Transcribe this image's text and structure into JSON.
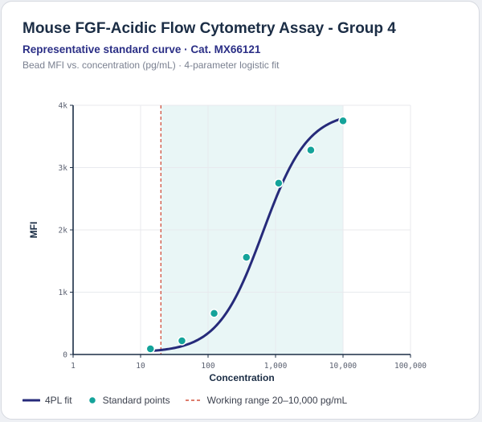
{
  "header": {
    "title": "Mouse FGF-Acidic Flow Cytometry Assay - Group 4",
    "subtitle": "Representative standard curve · Cat. MX66121",
    "caption": "Bead MFI vs. concentration (pg/mL) · 4-parameter logistic fit"
  },
  "legend": {
    "fit_label": "4PL fit",
    "points_label": "Standard points",
    "range_label": "Working range 20–10,000 pg/mL"
  },
  "colors": {
    "curve": "#262a7a",
    "points": "#14a39a",
    "points_stroke": "#ffffff",
    "range_line": "#d2503c",
    "range_fill": "#e9f6f6",
    "grid": "#e8eaee",
    "axis": "#1b2d45"
  },
  "chart_data": {
    "type": "scatter",
    "title": "Mouse FGF-Acidic Flow Cytometry Assay - Group 4",
    "xlabel": "Concentration",
    "ylabel": "MFI",
    "x_scale": "log",
    "xlim": [
      1,
      100000
    ],
    "ylim": [
      0,
      4000
    ],
    "x_ticks": [
      1,
      10,
      100,
      1000,
      10000,
      100000
    ],
    "x_tick_labels": [
      "1",
      "10",
      "100",
      "1,000",
      "10,000",
      "100,000"
    ],
    "y_ticks": [
      0,
      1000,
      2000,
      3000,
      4000
    ],
    "y_tick_labels": [
      "0",
      "1k",
      "2k",
      "3k",
      "4k"
    ],
    "grid": true,
    "legend_position": "bottom",
    "working_range": [
      20,
      10000
    ],
    "series": [
      {
        "name": "Standard points",
        "type": "scatter",
        "x": [
          14,
          41,
          123,
          370,
          1111,
          3333,
          10000
        ],
        "y": [
          90,
          220,
          660,
          1560,
          2750,
          3280,
          3750
        ]
      },
      {
        "name": "4PL fit",
        "type": "line",
        "fit": {
          "a": 30,
          "b": 1.3,
          "c": 650,
          "d": 3900
        },
        "x_range": [
          14,
          10000
        ]
      }
    ]
  }
}
